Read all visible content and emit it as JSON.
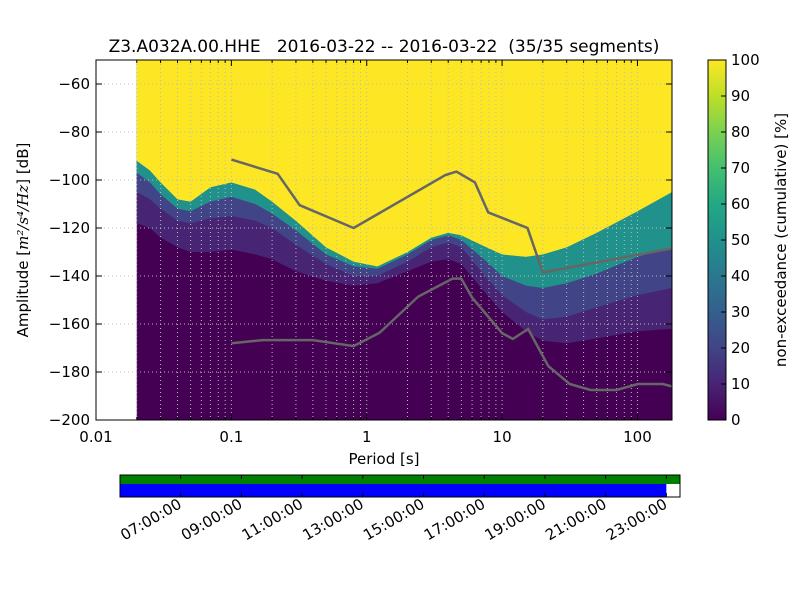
{
  "chart_data": {
    "type": "heatmap",
    "title": "Z3.A032A.00.HHE   2016-03-22 -- 2016-03-22  (35/35 segments)",
    "xlabel": "Period [s]",
    "ylabel_prefix": "Amplitude [",
    "ylabel_math": "m²/s⁴/Hz",
    "ylabel_suffix": "] [dB]",
    "x_scale": "log",
    "xlim": [
      0.01,
      180
    ],
    "ylim": [
      -200,
      -50
    ],
    "x_ticks": [
      {
        "value": 0.01,
        "label": "0.01"
      },
      {
        "value": 0.1,
        "label": "0.1"
      },
      {
        "value": 1,
        "label": "1"
      },
      {
        "value": 10,
        "label": "10"
      },
      {
        "value": 100,
        "label": "100"
      }
    ],
    "y_ticks": [
      {
        "value": -60,
        "label": "−60"
      },
      {
        "value": -80,
        "label": "−80"
      },
      {
        "value": -100,
        "label": "−100"
      },
      {
        "value": -120,
        "label": "−120"
      },
      {
        "value": -140,
        "label": "−140"
      },
      {
        "value": -160,
        "label": "−160"
      },
      {
        "value": -180,
        "label": "−180"
      },
      {
        "value": -200,
        "label": "−200"
      }
    ],
    "grid": true,
    "colorbar": {
      "label": "non-exceedance (cumulative) [%]",
      "range": [
        0,
        100
      ],
      "ticks": [
        {
          "value": 0,
          "label": "0"
        },
        {
          "value": 10,
          "label": "10"
        },
        {
          "value": 20,
          "label": "20"
        },
        {
          "value": 30,
          "label": "30"
        },
        {
          "value": 40,
          "label": "40"
        },
        {
          "value": 50,
          "label": "50"
        },
        {
          "value": 60,
          "label": "60"
        },
        {
          "value": 70,
          "label": "70"
        },
        {
          "value": 80,
          "label": "80"
        },
        {
          "value": 90,
          "label": "90"
        },
        {
          "value": 100,
          "label": "100"
        }
      ],
      "colors": [
        "#440154",
        "#482475",
        "#414487",
        "#355f8d",
        "#2a788e",
        "#21918c",
        "#22a884",
        "#44bf70",
        "#7ad151",
        "#bddf26",
        "#fde725"
      ]
    },
    "data_start_period": 0.02,
    "percentile_contours": {
      "p0_lower_db": [
        {
          "x": 0.02,
          "y": -118
        },
        {
          "x": 0.025,
          "y": -120
        },
        {
          "x": 0.03,
          "y": -124
        },
        {
          "x": 0.04,
          "y": -128
        },
        {
          "x": 0.05,
          "y": -130
        },
        {
          "x": 0.07,
          "y": -130
        },
        {
          "x": 0.1,
          "y": -129
        },
        {
          "x": 0.15,
          "y": -131
        },
        {
          "x": 0.2,
          "y": -133
        },
        {
          "x": 0.3,
          "y": -138
        },
        {
          "x": 0.5,
          "y": -142
        },
        {
          "x": 0.8,
          "y": -144
        },
        {
          "x": 1.2,
          "y": -143
        },
        {
          "x": 2,
          "y": -138
        },
        {
          "x": 3,
          "y": -134
        },
        {
          "x": 4,
          "y": -133
        },
        {
          "x": 5,
          "y": -135
        },
        {
          "x": 7,
          "y": -145
        },
        {
          "x": 10,
          "y": -155
        },
        {
          "x": 15,
          "y": -163
        },
        {
          "x": 20,
          "y": -167
        },
        {
          "x": 30,
          "y": -168
        },
        {
          "x": 50,
          "y": -166
        },
        {
          "x": 100,
          "y": -163
        },
        {
          "x": 180,
          "y": -162
        }
      ],
      "p10_db": [
        {
          "x": 0.02,
          "y": -105
        },
        {
          "x": 0.025,
          "y": -108
        },
        {
          "x": 0.03,
          "y": -112
        },
        {
          "x": 0.04,
          "y": -117
        },
        {
          "x": 0.05,
          "y": -118
        },
        {
          "x": 0.07,
          "y": -116
        },
        {
          "x": 0.1,
          "y": -115
        },
        {
          "x": 0.15,
          "y": -117
        },
        {
          "x": 0.2,
          "y": -120
        },
        {
          "x": 0.3,
          "y": -127
        },
        {
          "x": 0.5,
          "y": -135
        },
        {
          "x": 0.8,
          "y": -140
        },
        {
          "x": 1.2,
          "y": -140
        },
        {
          "x": 2,
          "y": -134
        },
        {
          "x": 3,
          "y": -128
        },
        {
          "x": 4,
          "y": -126
        },
        {
          "x": 5,
          "y": -128
        },
        {
          "x": 7,
          "y": -138
        },
        {
          "x": 10,
          "y": -148
        },
        {
          "x": 15,
          "y": -155
        },
        {
          "x": 20,
          "y": -158
        },
        {
          "x": 30,
          "y": -157
        },
        {
          "x": 50,
          "y": -153
        },
        {
          "x": 100,
          "y": -148
        },
        {
          "x": 180,
          "y": -145
        }
      ],
      "p50_db": [
        {
          "x": 0.02,
          "y": -97
        },
        {
          "x": 0.025,
          "y": -101
        },
        {
          "x": 0.03,
          "y": -106
        },
        {
          "x": 0.04,
          "y": -112
        },
        {
          "x": 0.05,
          "y": -113
        },
        {
          "x": 0.07,
          "y": -109
        },
        {
          "x": 0.1,
          "y": -107
        },
        {
          "x": 0.15,
          "y": -110
        },
        {
          "x": 0.2,
          "y": -114
        },
        {
          "x": 0.3,
          "y": -121
        },
        {
          "x": 0.5,
          "y": -131
        },
        {
          "x": 0.8,
          "y": -136
        },
        {
          "x": 1.2,
          "y": -137
        },
        {
          "x": 2,
          "y": -131
        },
        {
          "x": 3,
          "y": -125
        },
        {
          "x": 4,
          "y": -123
        },
        {
          "x": 5,
          "y": -125
        },
        {
          "x": 7,
          "y": -132
        },
        {
          "x": 10,
          "y": -140
        },
        {
          "x": 15,
          "y": -144
        },
        {
          "x": 20,
          "y": -145
        },
        {
          "x": 30,
          "y": -143
        },
        {
          "x": 50,
          "y": -139
        },
        {
          "x": 100,
          "y": -132
        },
        {
          "x": 180,
          "y": -128
        }
      ],
      "p90_db": [
        {
          "x": 0.02,
          "y": -92
        },
        {
          "x": 0.025,
          "y": -96
        },
        {
          "x": 0.03,
          "y": -101
        },
        {
          "x": 0.04,
          "y": -108
        },
        {
          "x": 0.05,
          "y": -109
        },
        {
          "x": 0.07,
          "y": -103
        },
        {
          "x": 0.1,
          "y": -101
        },
        {
          "x": 0.15,
          "y": -104
        },
        {
          "x": 0.2,
          "y": -109
        },
        {
          "x": 0.3,
          "y": -117
        },
        {
          "x": 0.5,
          "y": -128
        },
        {
          "x": 0.8,
          "y": -134
        },
        {
          "x": 1.2,
          "y": -136
        },
        {
          "x": 2,
          "y": -130
        },
        {
          "x": 3,
          "y": -124
        },
        {
          "x": 4,
          "y": -122
        },
        {
          "x": 5,
          "y": -123
        },
        {
          "x": 7,
          "y": -127
        },
        {
          "x": 10,
          "y": -131
        },
        {
          "x": 15,
          "y": -132
        },
        {
          "x": 20,
          "y": -131
        },
        {
          "x": 30,
          "y": -128
        },
        {
          "x": 50,
          "y": -122
        },
        {
          "x": 100,
          "y": -113
        },
        {
          "x": 180,
          "y": -105
        }
      ]
    },
    "nhnm": [
      {
        "x": 0.1,
        "y": -91.5
      },
      {
        "x": 0.22,
        "y": -97.4
      },
      {
        "x": 0.32,
        "y": -110.5
      },
      {
        "x": 0.8,
        "y": -120
      },
      {
        "x": 3.8,
        "y": -98
      },
      {
        "x": 4.6,
        "y": -96.5
      },
      {
        "x": 6.3,
        "y": -101
      },
      {
        "x": 7.9,
        "y": -113.5
      },
      {
        "x": 15.4,
        "y": -120
      },
      {
        "x": 20,
        "y": -138.5
      },
      {
        "x": 180,
        "y": -128.5
      }
    ],
    "nlnm": [
      {
        "x": 0.1,
        "y": -168
      },
      {
        "x": 0.17,
        "y": -166.7
      },
      {
        "x": 0.4,
        "y": -166.7
      },
      {
        "x": 0.8,
        "y": -169.2
      },
      {
        "x": 1.24,
        "y": -163.7
      },
      {
        "x": 2.4,
        "y": -148.6
      },
      {
        "x": 4.3,
        "y": -141.1
      },
      {
        "x": 5,
        "y": -141.1
      },
      {
        "x": 6,
        "y": -149
      },
      {
        "x": 10,
        "y": -163.8
      },
      {
        "x": 12,
        "y": -166.2
      },
      {
        "x": 15.6,
        "y": -162.1
      },
      {
        "x": 21.9,
        "y": -177.5
      },
      {
        "x": 31.6,
        "y": -185
      },
      {
        "x": 45,
        "y": -187.5
      },
      {
        "x": 70,
        "y": -187.5
      },
      {
        "x": 101,
        "y": -185
      },
      {
        "x": 154,
        "y": -185
      },
      {
        "x": 180,
        "y": -186
      }
    ],
    "model_line_color": "#666666",
    "timeline": {
      "tick_labels": [
        "07:00:00",
        "09:00:00",
        "11:00:00",
        "13:00:00",
        "15:00:00",
        "17:00:00",
        "19:00:00",
        "21:00:00",
        "23:00:00"
      ],
      "tick_hours": [
        7,
        9,
        11,
        13,
        15,
        17,
        19,
        21,
        23
      ],
      "range_hours": [
        5.0,
        23.45
      ],
      "data_end_hours": 23.0,
      "colors": {
        "data": "#0000ff",
        "gaps": "#008000"
      }
    }
  }
}
